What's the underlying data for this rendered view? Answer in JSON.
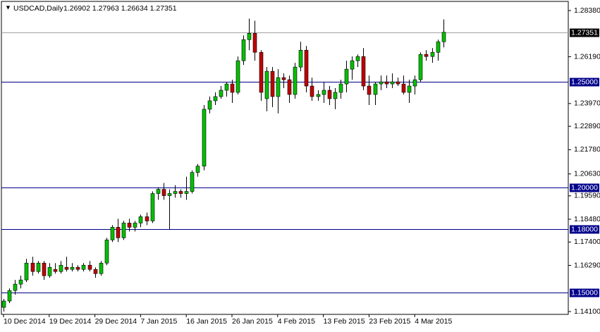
{
  "chart_data": {
    "type": "candlestick",
    "title": "USDCAD,Daily",
    "ohlc_text": "1.26902 1.27963 1.26634 1.27351",
    "categories": [
      "10 Dec 2014",
      null,
      null,
      null,
      null,
      null,
      null,
      null,
      "19 Dec 2014",
      null,
      null,
      null,
      null,
      null,
      null,
      null,
      "29 Dec 2014",
      null,
      null,
      null,
      null,
      null,
      null,
      null,
      "7 Jan 2015",
      null,
      null,
      null,
      null,
      null,
      null,
      null,
      "16 Jan 2015",
      null,
      null,
      null,
      null,
      null,
      null,
      null,
      "26 Jan 2015",
      null,
      null,
      null,
      null,
      null,
      null,
      null,
      "4 Feb 2015",
      null,
      null,
      null,
      null,
      null,
      null,
      null,
      "13 Feb 2015",
      null,
      null,
      null,
      null,
      null,
      null,
      null,
      "23 Feb 2015",
      null,
      null,
      null,
      null,
      null,
      null,
      null,
      "4 Mar 2015",
      null,
      null,
      null,
      null,
      null
    ],
    "open": [
      1.143,
      1.146,
      1.151,
      1.154,
      1.156,
      1.164,
      1.16,
      1.164,
      1.158,
      1.161,
      1.16,
      1.162,
      1.161,
      1.162,
      1.161,
      1.163,
      1.161,
      1.159,
      1.164,
      1.175,
      1.181,
      1.176,
      1.183,
      1.181,
      1.183,
      1.186,
      1.184,
      1.197,
      1.199,
      1.196,
      1.197,
      1.198,
      1.197,
      1.198,
      1.207,
      1.21,
      1.237,
      1.241,
      1.243,
      1.246,
      1.249,
      1.245,
      1.26,
      1.27,
      1.273,
      1.264,
      1.242,
      1.255,
      1.243,
      1.252,
      1.251,
      1.244,
      1.257,
      1.265,
      1.248,
      1.243,
      1.244,
      1.246,
      1.242,
      1.245,
      1.249,
      1.256,
      1.26,
      1.262,
      1.248,
      1.244,
      1.249,
      1.25,
      1.249,
      1.25,
      1.249,
      1.245,
      1.248,
      1.251,
      1.263,
      1.262,
      1.264,
      1.26902
    ],
    "high": [
      1.147,
      1.152,
      1.156,
      1.158,
      1.166,
      1.167,
      1.165,
      1.165,
      1.164,
      1.164,
      1.165,
      1.167,
      1.164,
      1.163,
      1.164,
      1.165,
      1.162,
      1.165,
      1.176,
      1.182,
      1.185,
      1.184,
      1.185,
      1.184,
      1.187,
      1.188,
      1.198,
      1.2,
      1.202,
      1.199,
      1.201,
      1.199,
      1.205,
      1.208,
      1.211,
      1.239,
      1.243,
      1.245,
      1.248,
      1.25,
      1.251,
      1.262,
      1.272,
      1.28,
      1.279,
      1.265,
      1.257,
      1.257,
      1.256,
      1.254,
      1.253,
      1.259,
      1.269,
      1.267,
      1.252,
      1.246,
      1.25,
      1.248,
      1.247,
      1.251,
      1.26,
      1.262,
      1.263,
      1.266,
      1.253,
      1.25,
      1.253,
      1.253,
      1.254,
      1.252,
      1.253,
      1.251,
      1.253,
      1.264,
      1.265,
      1.266,
      1.27,
      1.27963
    ],
    "low": [
      1.141,
      1.145,
      1.149,
      1.152,
      1.155,
      1.158,
      1.159,
      1.156,
      1.157,
      1.159,
      1.159,
      1.16,
      1.16,
      1.16,
      1.16,
      1.16,
      1.157,
      1.158,
      1.163,
      1.174,
      1.174,
      1.175,
      1.179,
      1.179,
      1.181,
      1.182,
      1.183,
      1.194,
      1.194,
      1.18,
      1.195,
      1.195,
      1.194,
      1.197,
      1.205,
      1.208,
      1.235,
      1.239,
      1.242,
      1.243,
      1.24,
      1.244,
      1.258,
      1.265,
      1.26,
      1.241,
      1.236,
      1.238,
      1.235,
      1.247,
      1.24,
      1.242,
      1.255,
      1.245,
      1.241,
      1.241,
      1.24,
      1.239,
      1.237,
      1.242,
      1.245,
      1.251,
      1.257,
      1.246,
      1.239,
      1.239,
      1.246,
      1.247,
      1.247,
      1.248,
      1.244,
      1.24,
      1.244,
      1.25,
      1.26,
      1.259,
      1.26,
      1.26634
    ],
    "close": [
      1.146,
      1.151,
      1.154,
      1.156,
      1.164,
      1.16,
      1.164,
      1.158,
      1.162,
      1.16,
      1.163,
      1.161,
      1.162,
      1.161,
      1.163,
      1.161,
      1.159,
      1.164,
      1.175,
      1.181,
      1.176,
      1.183,
      1.181,
      1.183,
      1.186,
      1.184,
      1.197,
      1.199,
      1.196,
      1.197,
      1.198,
      1.197,
      1.198,
      1.207,
      1.21,
      1.237,
      1.241,
      1.243,
      1.246,
      1.249,
      1.245,
      1.26,
      1.27,
      1.273,
      1.264,
      1.245,
      1.255,
      1.243,
      1.252,
      1.251,
      1.244,
      1.257,
      1.265,
      1.248,
      1.243,
      1.244,
      1.246,
      1.242,
      1.245,
      1.249,
      1.256,
      1.26,
      1.262,
      1.248,
      1.244,
      1.249,
      1.25,
      1.249,
      1.25,
      1.249,
      1.245,
      1.248,
      1.251,
      1.263,
      1.262,
      1.264,
      1.269,
      1.27351
    ],
    "up_color": "#00c000",
    "down_color": "#c00000",
    "ylim": [
      1.141,
      1.2838
    ],
    "yticks": [
      {
        "value": 1.2838,
        "label": "1.28380"
      },
      {
        "value": 1.2619,
        "label": "1.26190"
      },
      {
        "value": 1.2397,
        "label": "1.23970"
      },
      {
        "value": 1.2289,
        "label": "1.22890"
      },
      {
        "value": 1.2178,
        "label": "1.21780"
      },
      {
        "value": 1.2063,
        "label": "1.20630"
      },
      {
        "value": 1.1959,
        "label": "1.19590"
      },
      {
        "value": 1.1848,
        "label": "1.18480"
      },
      {
        "value": 1.174,
        "label": "1.17400"
      },
      {
        "value": 1.1629,
        "label": "1.16290"
      },
      {
        "value": 1.141,
        "label": "1.14100"
      }
    ],
    "hlines": [
      {
        "value": 1.25,
        "label": "1.25000"
      },
      {
        "value": 1.2,
        "label": "1.20000"
      },
      {
        "value": 1.18,
        "label": "1.18000"
      },
      {
        "value": 1.15,
        "label": "1.15000"
      }
    ],
    "hline_color": "#00008b",
    "price_line": {
      "value": 1.27351,
      "label": "1.27351"
    },
    "grid": false
  }
}
